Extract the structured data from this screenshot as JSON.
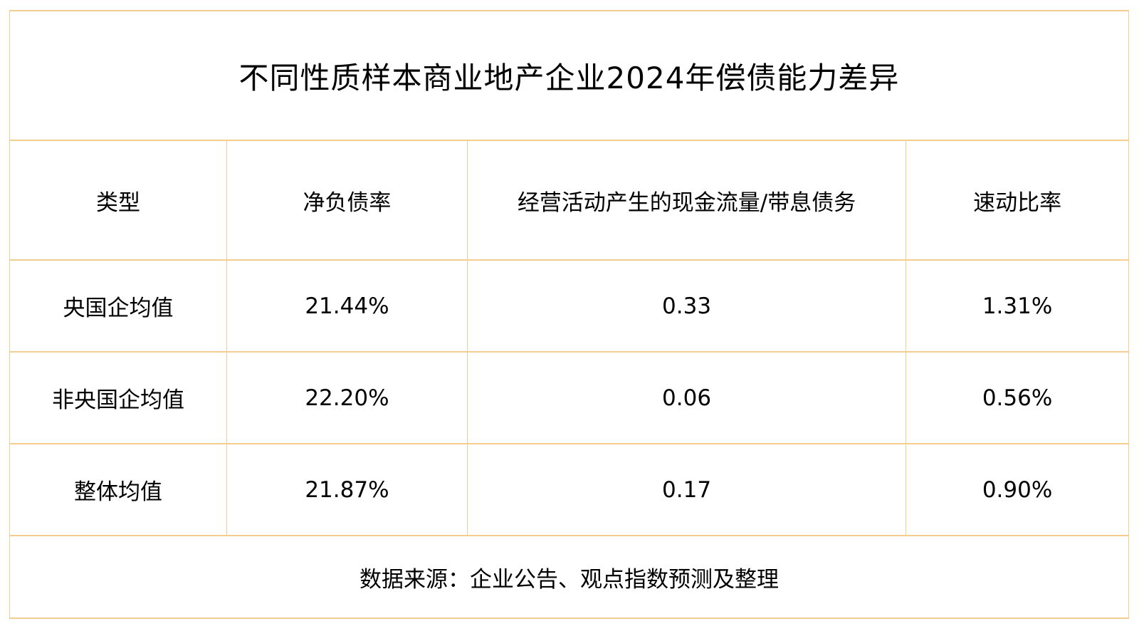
{
  "title": "不同性质样本商业地产企业2024年偿债能力差异",
  "source_note": "数据来源：企业公告、观点指数预测及整理",
  "colors": {
    "title_background": "#ffa113",
    "grid_border": "#f6cd90",
    "text": "#000000",
    "cell_background": "#ffffff"
  },
  "table": {
    "columns": [
      "类型",
      "净负债率",
      "经营活动产生的现金流量/带息债务",
      "速动比率"
    ],
    "rows": [
      [
        "央国企均值",
        "21.44%",
        "0.33",
        "1.31%"
      ],
      [
        "非央国企均值",
        "22.20%",
        "0.06",
        "0.56%"
      ],
      [
        "整体均值",
        "21.87%",
        "0.17",
        "0.90%"
      ]
    ]
  },
  "chart_data": {
    "type": "table",
    "title": "不同性质样本商业地产企业2024年偿债能力差异",
    "columns": [
      "类型",
      "净负债率",
      "经营活动产生的现金流量/带息债务",
      "速动比率"
    ],
    "rows": [
      {
        "类型": "央国企均值",
        "净负债率": "21.44%",
        "经营活动产生的现金流量/带息债务": "0.33",
        "速动比率": "1.31%"
      },
      {
        "类型": "非央国企均值",
        "净负债率": "22.20%",
        "经营活动产生的现金流量/带息债务": "0.06",
        "速动比率": "0.56%"
      },
      {
        "类型": "整体均值",
        "净负债率": "21.87%",
        "经营活动产生的现金流量/带息债务": "0.17",
        "速动比率": "0.90%"
      }
    ],
    "source": "数据来源：企业公告、观点指数预测及整理",
    "layout": {
      "title_bar": "orange",
      "grid": "light-orange",
      "text_align": "center"
    }
  }
}
